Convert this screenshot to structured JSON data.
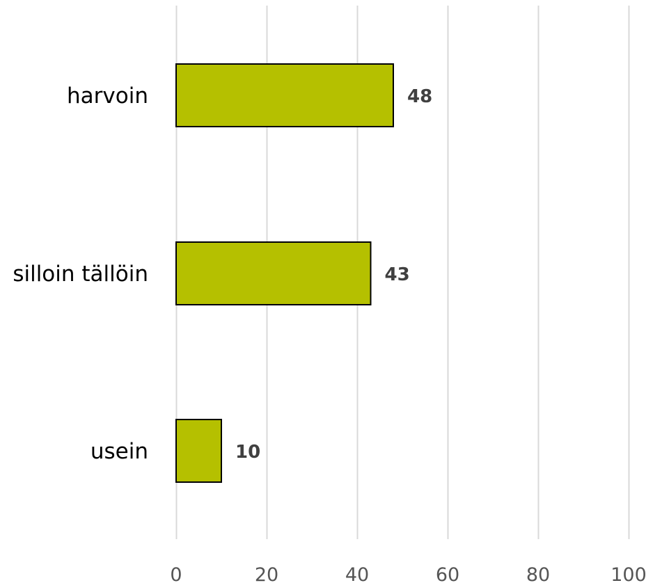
{
  "chart_data": {
    "type": "bar",
    "orientation": "horizontal",
    "categories": [
      "harvoin",
      "silloin tällöin",
      "usein"
    ],
    "values": [
      48,
      43,
      10
    ],
    "data_labels": [
      "48",
      "43",
      "10"
    ],
    "xlim": [
      0,
      100
    ],
    "x_ticks": [
      0,
      20,
      40,
      60,
      80,
      100
    ],
    "x_tick_labels": [
      "0",
      "20",
      "40",
      "60",
      "80",
      "100"
    ],
    "grid": true,
    "legend": "none",
    "bar_color": "#b5c000",
    "bar_edge_color": "#000000",
    "grid_color": "#d9d9d9"
  }
}
